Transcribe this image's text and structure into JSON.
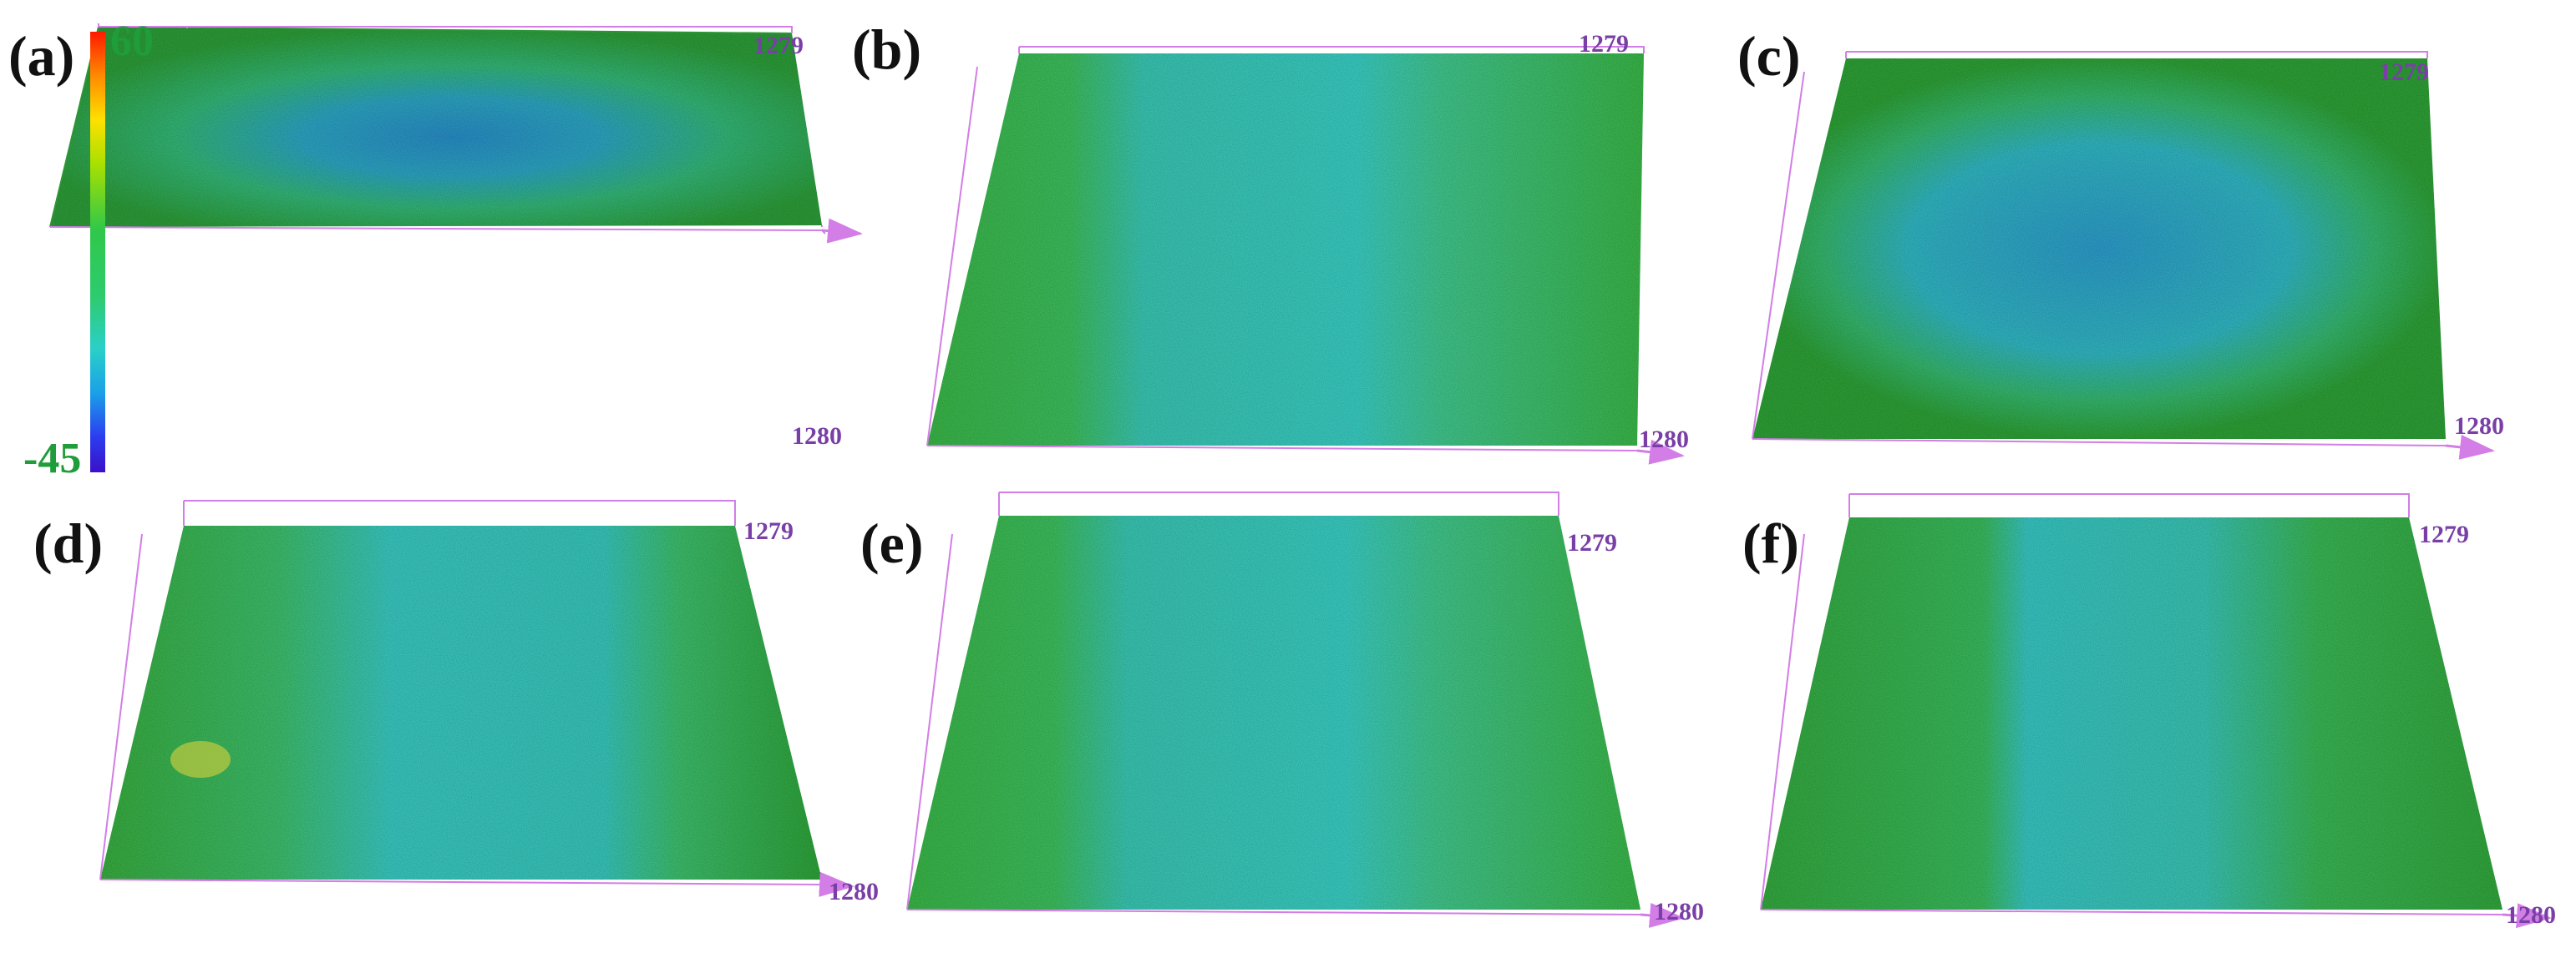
{
  "colorbar": {
    "max_label": "60",
    "min_label": "-45",
    "gradient_colors": [
      "#ff1a00",
      "#ffe000",
      "#2fc84a",
      "#2ad0c8",
      "#1aa0e8",
      "#3a10c8"
    ]
  },
  "panels": [
    {
      "label": "(a)",
      "axis_top": "1279",
      "axis_bottom": "1280"
    },
    {
      "label": "(b)",
      "axis_top": "1279",
      "axis_bottom": "1280"
    },
    {
      "label": "(c)",
      "axis_top": "1279",
      "axis_bottom": "1280"
    },
    {
      "label": "(d)",
      "axis_top": "1279",
      "axis_bottom": "1280"
    },
    {
      "label": "(e)",
      "axis_top": "1279",
      "axis_bottom": "1280"
    },
    {
      "label": "(f)",
      "axis_top": "1279",
      "axis_bottom": "1280"
    }
  ],
  "colors": {
    "surface_green": "#3cb43c",
    "surface_cyan": "#38c8c0",
    "surface_blue": "#2a90d0",
    "frame": "#d27ee6",
    "axis_text": "#7a3fa6",
    "scale_text": "#1f9d3a"
  }
}
